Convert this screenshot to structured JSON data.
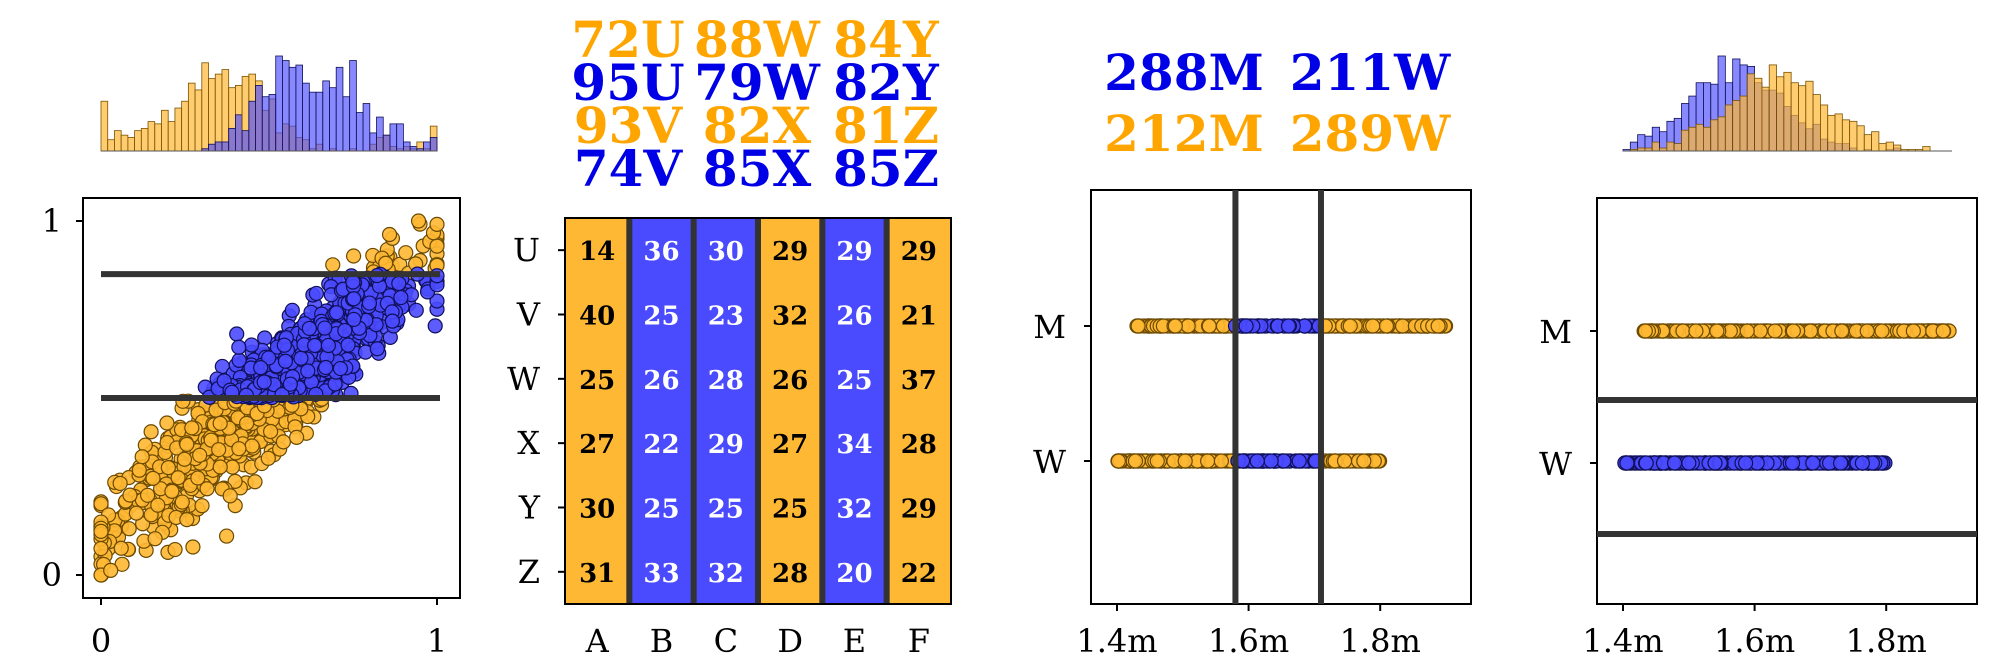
{
  "colors": {
    "orange": "#ffb833",
    "blue": "#4a4aff",
    "orange_text": "#ffa500",
    "blue_text": "#0000e6",
    "line": "#333333"
  },
  "chart_data": [
    {
      "type": "scatter",
      "xlim": [
        0,
        1
      ],
      "ylim": [
        0,
        1
      ],
      "xticks": [
        "0",
        "1"
      ],
      "yticks": [
        "0",
        "1"
      ],
      "hlines": [
        0.5,
        0.85
      ],
      "note": "orange points below 0.5 and above 0.85; blue points between the two lines",
      "marginal_histogram": "top"
    },
    {
      "type": "table",
      "rows": [
        "U",
        "V",
        "W",
        "X",
        "Y",
        "Z"
      ],
      "columns": [
        "A",
        "B",
        "C",
        "D",
        "E",
        "F"
      ],
      "column_colors": [
        "orange",
        "blue",
        "blue",
        "orange",
        "blue",
        "orange"
      ],
      "cells": [
        [
          14,
          36,
          30,
          29,
          29,
          29
        ],
        [
          40,
          25,
          23,
          32,
          26,
          21
        ],
        [
          25,
          26,
          28,
          26,
          25,
          37
        ],
        [
          27,
          22,
          29,
          27,
          34,
          28
        ],
        [
          30,
          25,
          25,
          25,
          32,
          29
        ],
        [
          31,
          33,
          32,
          28,
          20,
          22
        ]
      ],
      "counts": [
        [
          "72U",
          "88W",
          "84Y"
        ],
        [
          "95U",
          "79W",
          "82Y"
        ],
        [
          "93V",
          "82X",
          "81Z"
        ],
        [
          "74V",
          "85X",
          "85Z"
        ]
      ],
      "count_colors": [
        "orange",
        "blue",
        "orange",
        "blue"
      ]
    },
    {
      "type": "scatter",
      "categories": [
        "M",
        "W"
      ],
      "xticks": [
        "1.4m",
        "1.6m",
        "1.8m"
      ],
      "xlim": [
        1.4,
        1.9
      ],
      "vlines": [
        1.58,
        1.71
      ],
      "counts": [
        [
          "288M",
          "211W"
        ],
        [
          "212M",
          "289W"
        ]
      ],
      "count_colors": [
        "blue",
        "orange"
      ]
    },
    {
      "type": "scatter",
      "categories": [
        "M",
        "W"
      ],
      "xticks": [
        "1.4m",
        "1.6m",
        "1.8m"
      ],
      "xlim": [
        1.4,
        1.9
      ],
      "series": [
        {
          "category": "M",
          "color": "orange"
        },
        {
          "category": "W",
          "color": "blue"
        }
      ],
      "marginal_histogram": "top"
    }
  ]
}
